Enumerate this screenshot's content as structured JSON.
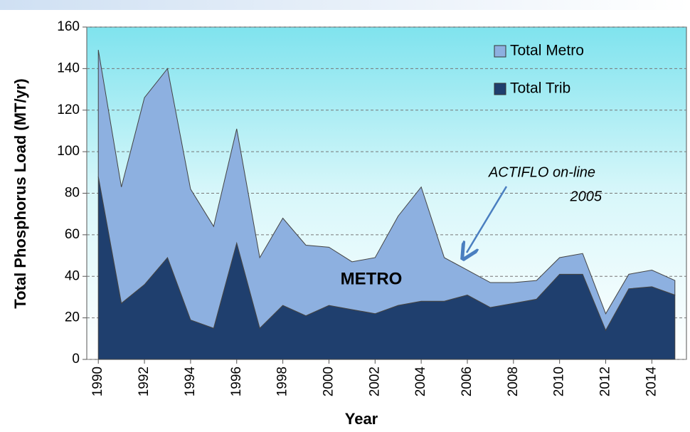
{
  "chart_data": {
    "type": "stacked_area",
    "y_label": "Total Phosphorus  Load  (MT/yr)",
    "x_label": "Year",
    "x": [
      1990,
      1991,
      1992,
      1993,
      1994,
      1995,
      1996,
      1997,
      1998,
      1999,
      2000,
      2001,
      2002,
      2003,
      2004,
      2005,
      2006,
      2007,
      2008,
      2009,
      2010,
      2011,
      2012,
      2013,
      2014,
      2015
    ],
    "series": [
      {
        "name": "Total Trib",
        "color": "#1f3f6e",
        "values": [
          88,
          27,
          36,
          49,
          19,
          15,
          56,
          15,
          26,
          21,
          26,
          24,
          22,
          26,
          28,
          28,
          31,
          25,
          27,
          29,
          41,
          41,
          14,
          34,
          35,
          31
        ]
      },
      {
        "name": "Total Metro",
        "color": "#8db0e0",
        "values": [
          61,
          56,
          90,
          91,
          63,
          49,
          55,
          34,
          42,
          34,
          28,
          23,
          27,
          43,
          55,
          21,
          12,
          12,
          10,
          9,
          8,
          10,
          8,
          7,
          8,
          7
        ]
      }
    ],
    "xlim": [
      1989.5,
      2015.5
    ],
    "xticks": [
      1990,
      1992,
      1994,
      1996,
      1998,
      2000,
      2002,
      2004,
      2006,
      2008,
      2010,
      2012,
      2014
    ],
    "ylim": [
      0,
      160
    ],
    "yticks": [
      0,
      20,
      40,
      60,
      80,
      100,
      120,
      140,
      160
    ],
    "grid": true,
    "legend": "upper right",
    "annotations": [
      "METRO",
      "ACTIFLO on-line",
      "2005"
    ]
  }
}
